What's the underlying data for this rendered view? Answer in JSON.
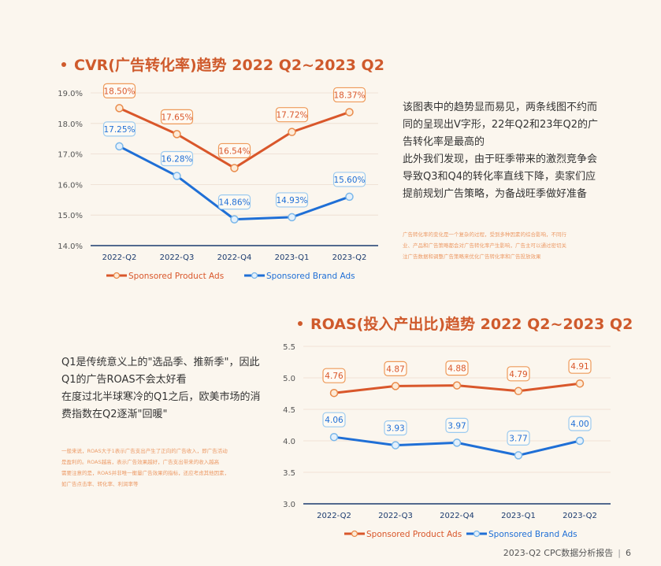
{
  "colors": {
    "spa": "#d9572b",
    "sba": "#1f6fd6",
    "accent": "#cf5a2c"
  },
  "cvr_section": {
    "title": "CVR(广告转化率)趋势 2022 Q2~2023 Q2",
    "paragraph_lines": [
      "该图表中的趋势显而易见，两条线图不约而",
      "同的呈现出V字形，22年Q2和23年Q2的广",
      "告转化率是最高的",
      "此外我们发现，由于旺季带来的激烈竞争会",
      "导致Q3和Q4的转化率直线下降，卖家们应",
      "提前规划广告策略，为备战旺季做好准备"
    ],
    "note_lines": [
      "广告转化率的变化是一个复杂的过程，受到多种因素的综合影响，不同行",
      "业、产品和广告策略都会对广告转化率产生影响，广告主可以通过密切关",
      "注广告数据和调整广告策略来优化广告转化率和广告投放效果"
    ]
  },
  "roas_section": {
    "title": "ROAS(投入产出比)趋势 2022 Q2~2023 Q2",
    "paragraph_lines": [
      "Q1是传统意义上的\"选品季、推新季\"，因此",
      "Q1的广告ROAS不会太好看",
      "在度过北半球寒冷的Q1之后，欧美市场的消",
      "费指数在Q2逐渐\"回暖\""
    ],
    "note_lines": [
      "一般来说，ROAS大于1表示广告支出产生了正向的广告收入，即广告活动",
      "是盈利的。ROAS越高，表示广告效果越好，广告支出带来的收入越高",
      "需要注意的是，ROAS并非唯一衡量广告效果的指标，还应考虑其他因素，",
      "如广告点击率、转化率、利润率等"
    ]
  },
  "footer": {
    "report": "2023-Q2 CPC数据分析报告",
    "page": "6"
  },
  "chart_data": [
    {
      "type": "line",
      "title": "CVR(广告转化率)趋势 2022 Q2~2023 Q2",
      "categories": [
        "2022-Q2",
        "2022-Q3",
        "2022-Q4",
        "2023-Q1",
        "2023-Q2"
      ],
      "series": [
        {
          "name": "Sponsored Product Ads",
          "values": [
            18.5,
            17.65,
            16.54,
            17.72,
            18.37
          ],
          "labels": [
            "18.50%",
            "17.65%",
            "16.54%",
            "17.72%",
            "18.37%"
          ]
        },
        {
          "name": "Sponsored Brand Ads",
          "values": [
            17.25,
            16.28,
            14.86,
            14.93,
            15.6
          ],
          "labels": [
            "17.25%",
            "16.28%",
            "14.86%",
            "14.93%",
            "15.60%"
          ]
        }
      ],
      "yticks": [
        "14.0%",
        "15.0%",
        "16.0%",
        "17.0%",
        "18.0%",
        "19.0%"
      ],
      "ylim": [
        14,
        19
      ],
      "grid": true,
      "legend": "bottom"
    },
    {
      "type": "line",
      "title": "ROAS(投入产出比)趋势 2022 Q2~2023 Q2",
      "categories": [
        "2022-Q2",
        "2022-Q3",
        "2022-Q4",
        "2023-Q1",
        "2023-Q2"
      ],
      "series": [
        {
          "name": "Sponsored Product Ads",
          "values": [
            4.76,
            4.87,
            4.88,
            4.79,
            4.91
          ],
          "labels": [
            "4.76",
            "4.87",
            "4.88",
            "4.79",
            "4.91"
          ]
        },
        {
          "name": "Sponsored Brand Ads",
          "values": [
            4.06,
            3.93,
            3.97,
            3.77,
            4.0
          ],
          "labels": [
            "4.06",
            "3.93",
            "3.97",
            "3.77",
            "4.00"
          ]
        }
      ],
      "yticks": [
        "3.0",
        "3.5",
        "4.0",
        "4.5",
        "5.0",
        "5.5"
      ],
      "ylim": [
        3.0,
        5.5
      ],
      "grid": true,
      "legend": "bottom"
    }
  ]
}
